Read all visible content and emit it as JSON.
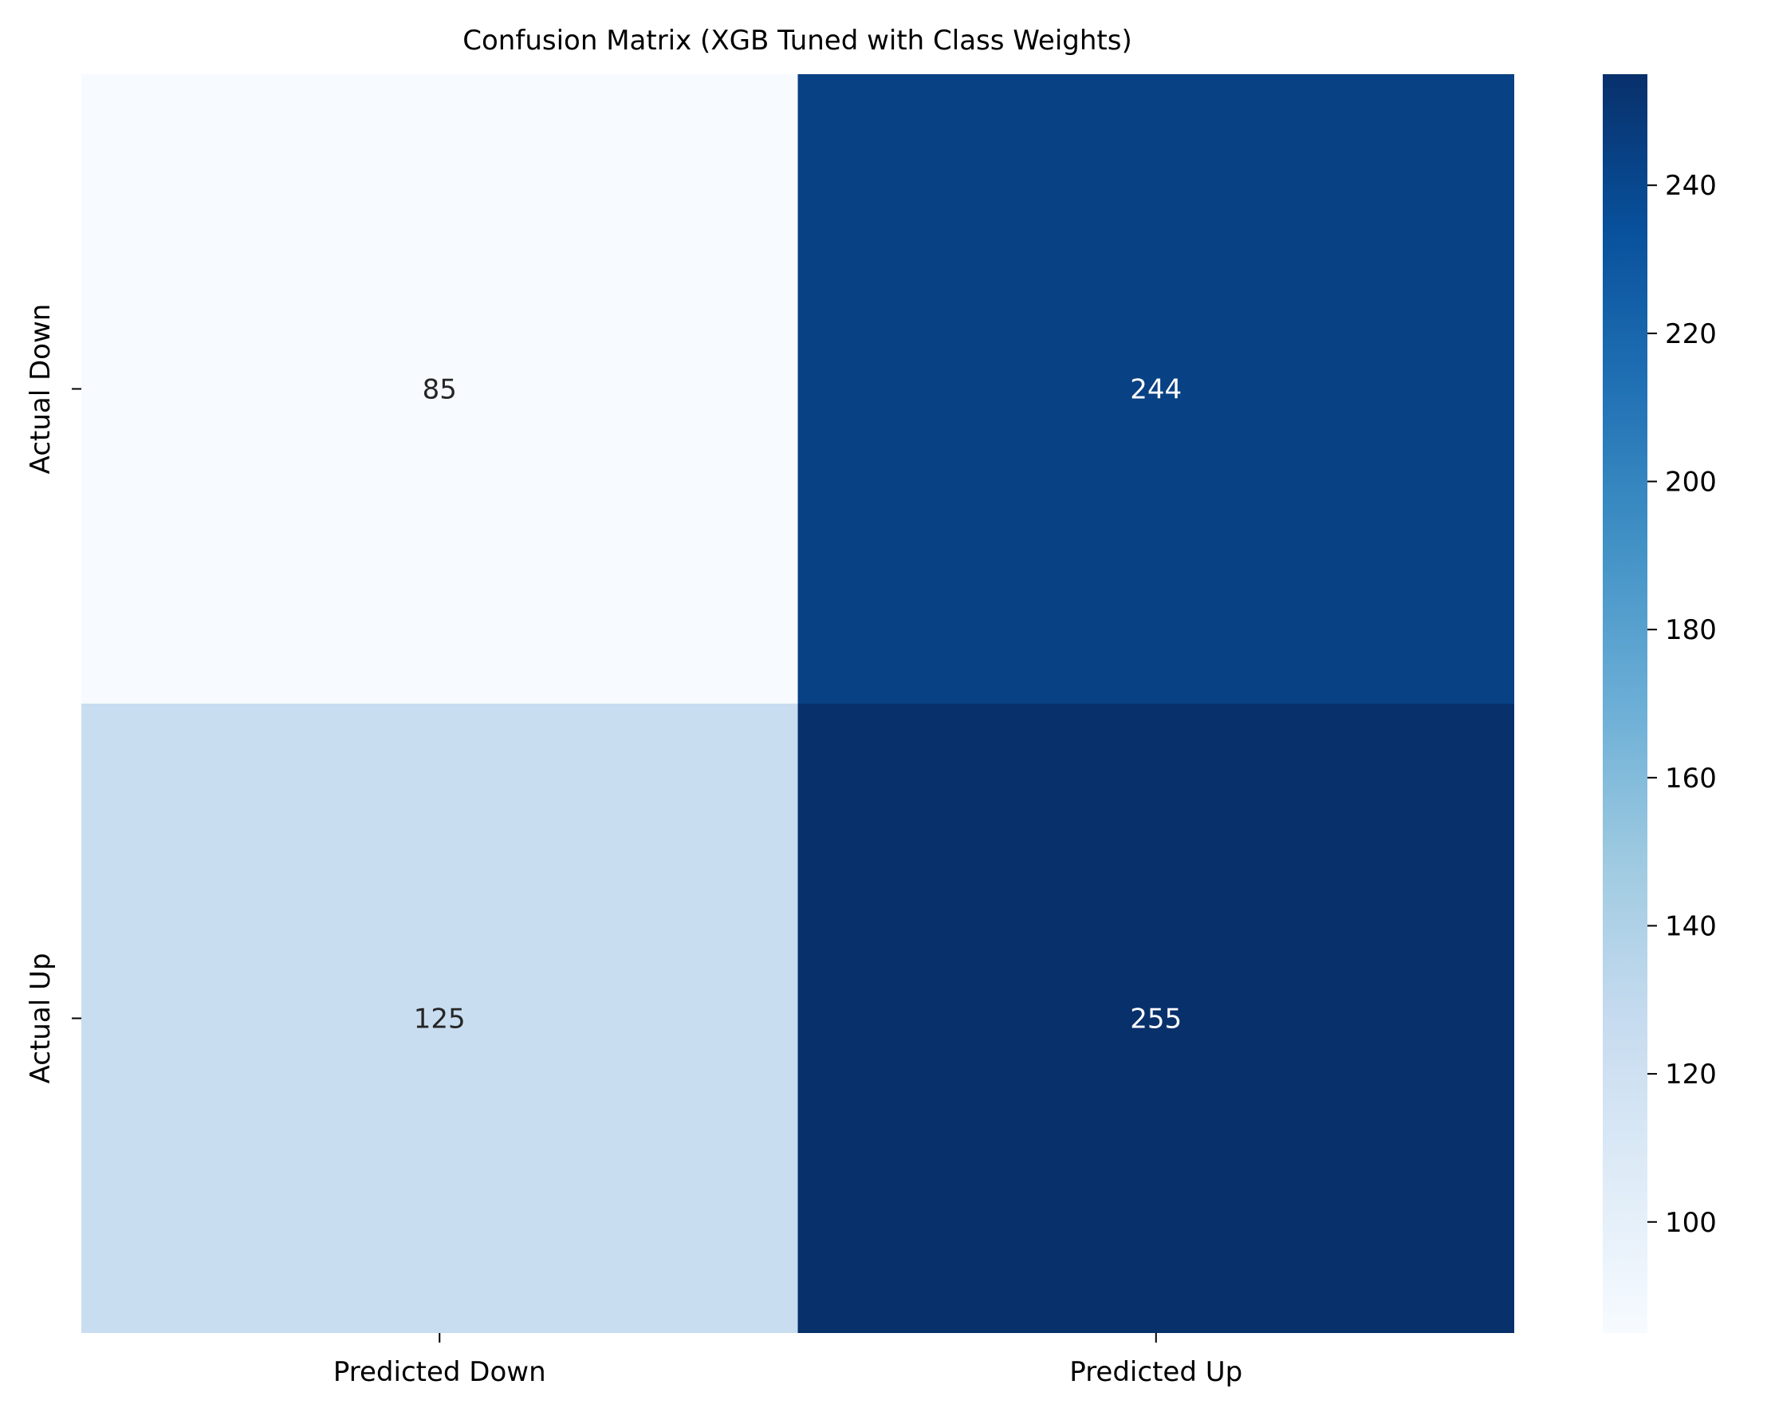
{
  "chart_data": {
    "type": "heatmap",
    "title": "Confusion Matrix (XGB Tuned with Class Weights)",
    "xlabel": "",
    "ylabel": "",
    "x_categories": [
      "Predicted Down",
      "Predicted Up"
    ],
    "y_categories": [
      "Actual Down",
      "Actual Up"
    ],
    "values": [
      [
        85,
        244
      ],
      [
        125,
        255
      ]
    ],
    "colormap": "Blues",
    "color_range": [
      85,
      255
    ],
    "colorbar_ticks": [
      100,
      120,
      140,
      160,
      180,
      200,
      220,
      240
    ],
    "grid": false,
    "legend": "colorbar-right",
    "annotation_colors": {
      "light_cell": "#262626",
      "dark_cell": "#ffffff"
    }
  }
}
